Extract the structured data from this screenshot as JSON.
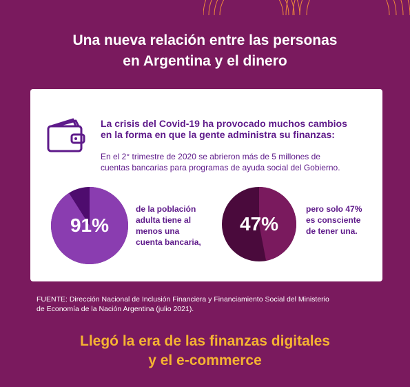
{
  "colors": {
    "background": "#7a1a5e",
    "card": "#ffffff",
    "accent_text": "#5e1a8a",
    "bottom_text": "#f5b332",
    "pie1_main": "#8a3db0",
    "pie1_rest": "#4e0c6e",
    "pie2_main": "#7a1a5e",
    "pie2_rest": "#4a0a3c"
  },
  "header": {
    "title_line1": "Una nueva relación entre las personas",
    "title_line2": "en Argentina y el dinero"
  },
  "card": {
    "icon": "wallet-icon",
    "crisis_line1": "La crisis del Covid-19 ha provocado muchos cambios",
    "crisis_line2": "en la forma en que la gente administra su finanzas:",
    "trimestre_line1": "En el 2° trimestre de 2020 se abrieron más de 5 millones de",
    "trimestre_line2": "cuentas bancarias para programas de ayuda social del Gobierno.",
    "stat1": {
      "percent_value": 91,
      "label": "91%",
      "desc_line1": "de la población",
      "desc_line2": "adulta tiene al",
      "desc_line3": "menos una",
      "desc_line4": "cuenta bancaria,"
    },
    "stat2": {
      "percent_value": 47,
      "label": "47%",
      "desc_line1": "pero solo 47%",
      "desc_line2": "es consciente",
      "desc_line3": "de tener una."
    }
  },
  "source": {
    "line1": "FUENTE: Dirección Nacional de Inclusión Financiera y Financiamiento Social del Ministerio",
    "line2": "de Economía de la Nación Argentina (julio 2021)."
  },
  "footer": {
    "line1": "Llegó la era de las finanzas digitales",
    "line2": "y el e-commerce"
  }
}
